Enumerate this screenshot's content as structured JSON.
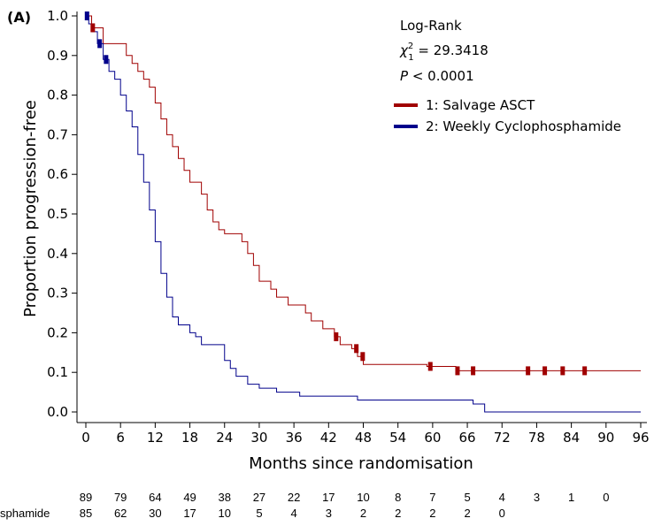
{
  "panel_label": "(A)",
  "colors": {
    "series1": "#a00000",
    "series2": "#00008b",
    "axis": "#000000"
  },
  "chart_data": {
    "type": "line",
    "xlabel": "Months since randomisation",
    "ylabel": "Proportion progression-free",
    "xlim": [
      0,
      96
    ],
    "ylim": [
      0,
      1
    ],
    "x_ticks": [
      "0",
      "6",
      "12",
      "18",
      "24",
      "30",
      "36",
      "42",
      "48",
      "54",
      "60",
      "66",
      "72",
      "78",
      "84",
      "90",
      "96"
    ],
    "y_ticks": [
      "0.0",
      "0.1",
      "0.2",
      "0.3",
      "0.4",
      "0.5",
      "0.6",
      "0.7",
      "0.8",
      "0.9",
      "1.0"
    ],
    "annotation": {
      "title": "Log-Rank",
      "chi_symbol": "χ",
      "chi_sup": "2",
      "chi_sub": "1",
      "chi_value": " = 29.3418",
      "p_symbol": "P",
      "p_value": " < 0.0001"
    },
    "legend": [
      "1: Salvage ASCT",
      "2: Weekly Cyclophosphamide"
    ],
    "series": [
      {
        "name": "1: Salvage ASCT",
        "color": "#a00000",
        "step": [
          [
            0,
            1.0
          ],
          [
            1,
            0.97
          ],
          [
            3,
            0.93
          ],
          [
            7,
            0.9
          ],
          [
            8,
            0.88
          ],
          [
            9,
            0.86
          ],
          [
            10,
            0.84
          ],
          [
            11,
            0.82
          ],
          [
            12,
            0.78
          ],
          [
            13,
            0.74
          ],
          [
            14,
            0.7
          ],
          [
            15,
            0.67
          ],
          [
            16,
            0.64
          ],
          [
            17,
            0.61
          ],
          [
            18,
            0.58
          ],
          [
            20,
            0.55
          ],
          [
            21,
            0.51
          ],
          [
            22,
            0.48
          ],
          [
            23,
            0.46
          ],
          [
            24,
            0.45
          ],
          [
            27,
            0.43
          ],
          [
            28,
            0.4
          ],
          [
            29,
            0.37
          ],
          [
            30,
            0.33
          ],
          [
            32,
            0.31
          ],
          [
            33,
            0.29
          ],
          [
            35,
            0.27
          ],
          [
            38,
            0.25
          ],
          [
            39,
            0.23
          ],
          [
            41,
            0.21
          ],
          [
            43,
            0.19
          ],
          [
            44,
            0.17
          ],
          [
            46,
            0.16
          ],
          [
            47,
            0.14
          ],
          [
            48,
            0.12
          ],
          [
            59,
            0.115
          ],
          [
            64,
            0.104
          ],
          [
            96,
            0.104
          ]
        ],
        "censor_x": [
          1.2,
          43.3,
          46.8,
          47.9,
          59.6,
          64.3,
          67.0,
          76.5,
          79.4,
          82.5,
          86.3
        ]
      },
      {
        "name": "2: Weekly Cyclophosphamide",
        "color": "#00008b",
        "step": [
          [
            0,
            1.0
          ],
          [
            0.5,
            0.98
          ],
          [
            1,
            0.96
          ],
          [
            2,
            0.93
          ],
          [
            3,
            0.89
          ],
          [
            4,
            0.86
          ],
          [
            5,
            0.84
          ],
          [
            6,
            0.8
          ],
          [
            7,
            0.76
          ],
          [
            8,
            0.72
          ],
          [
            9,
            0.65
          ],
          [
            10,
            0.58
          ],
          [
            11,
            0.51
          ],
          [
            12,
            0.43
          ],
          [
            13,
            0.35
          ],
          [
            14,
            0.29
          ],
          [
            15,
            0.24
          ],
          [
            16,
            0.22
          ],
          [
            18,
            0.2
          ],
          [
            19,
            0.19
          ],
          [
            20,
            0.17
          ],
          [
            24,
            0.13
          ],
          [
            25,
            0.11
          ],
          [
            26,
            0.09
          ],
          [
            28,
            0.07
          ],
          [
            30,
            0.06
          ],
          [
            33,
            0.05
          ],
          [
            37,
            0.04
          ],
          [
            47,
            0.03
          ],
          [
            67,
            0.02
          ],
          [
            69,
            0.0
          ],
          [
            96,
            0.0
          ]
        ],
        "censor_x": [
          0.2,
          2.4,
          3.5
        ]
      }
    ],
    "at_risk": {
      "x": [
        0,
        6,
        12,
        18,
        24,
        30,
        36,
        42,
        48,
        54,
        60,
        66,
        72,
        78,
        84,
        90
      ],
      "rows": [
        {
          "label": "",
          "values": [
            "89",
            "79",
            "64",
            "49",
            "38",
            "27",
            "22",
            "17",
            "10",
            "8",
            "7",
            "5",
            "4",
            "3",
            "1",
            "0"
          ]
        },
        {
          "label": "sphamide",
          "values": [
            "85",
            "62",
            "30",
            "17",
            "10",
            "5",
            "4",
            "3",
            "2",
            "2",
            "2",
            "2",
            "0"
          ]
        }
      ]
    }
  }
}
